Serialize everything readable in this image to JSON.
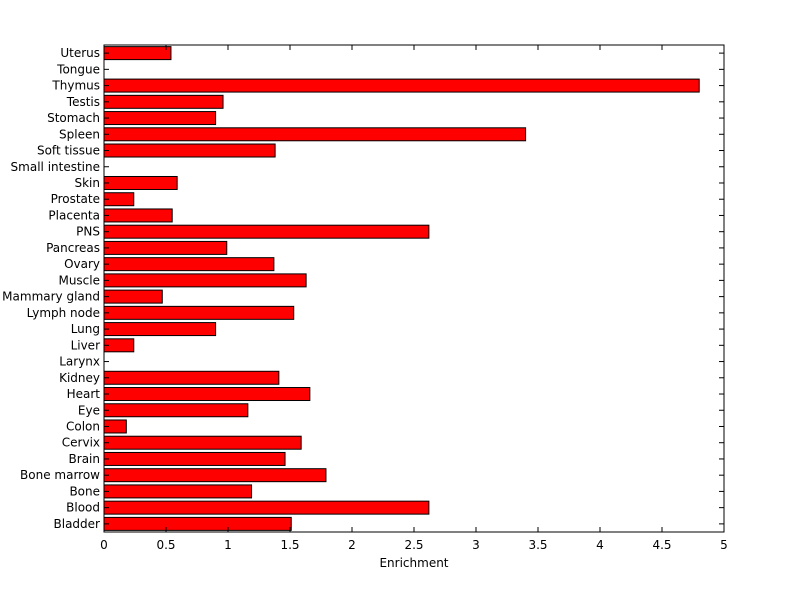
{
  "chart_data": {
    "type": "bar",
    "orientation": "horizontal",
    "categories": [
      "Uterus",
      "Tongue",
      "Thymus",
      "Testis",
      "Stomach",
      "Spleen",
      "Soft tissue",
      "Small intestine",
      "Skin",
      "Prostate",
      "Placenta",
      "PNS",
      "Pancreas",
      "Ovary",
      "Muscle",
      "Mammary gland",
      "Lymph node",
      "Lung",
      "Liver",
      "Larynx",
      "Kidney",
      "Heart",
      "Eye",
      "Colon",
      "Cervix",
      "Brain",
      "Bone marrow",
      "Bone",
      "Blood",
      "Bladder"
    ],
    "values": [
      0.54,
      0,
      4.8,
      0.96,
      0.9,
      3.4,
      1.38,
      0,
      0.59,
      0.24,
      0.55,
      2.62,
      0.99,
      1.37,
      1.63,
      0.47,
      1.53,
      0.9,
      0.24,
      0,
      1.41,
      1.66,
      1.16,
      0.18,
      1.59,
      1.46,
      1.79,
      1.19,
      2.62,
      1.51
    ],
    "title": "",
    "xlabel": "Enrichment",
    "ylabel": "",
    "xlim": [
      0,
      5
    ],
    "xticks": [
      "0",
      "0.5",
      "1",
      "1.5",
      "2",
      "2.5",
      "3",
      "3.5",
      "4",
      "4.5",
      "5"
    ],
    "grid": false,
    "bar_color": "#ff0000",
    "bar_edge_color": "#000000"
  }
}
